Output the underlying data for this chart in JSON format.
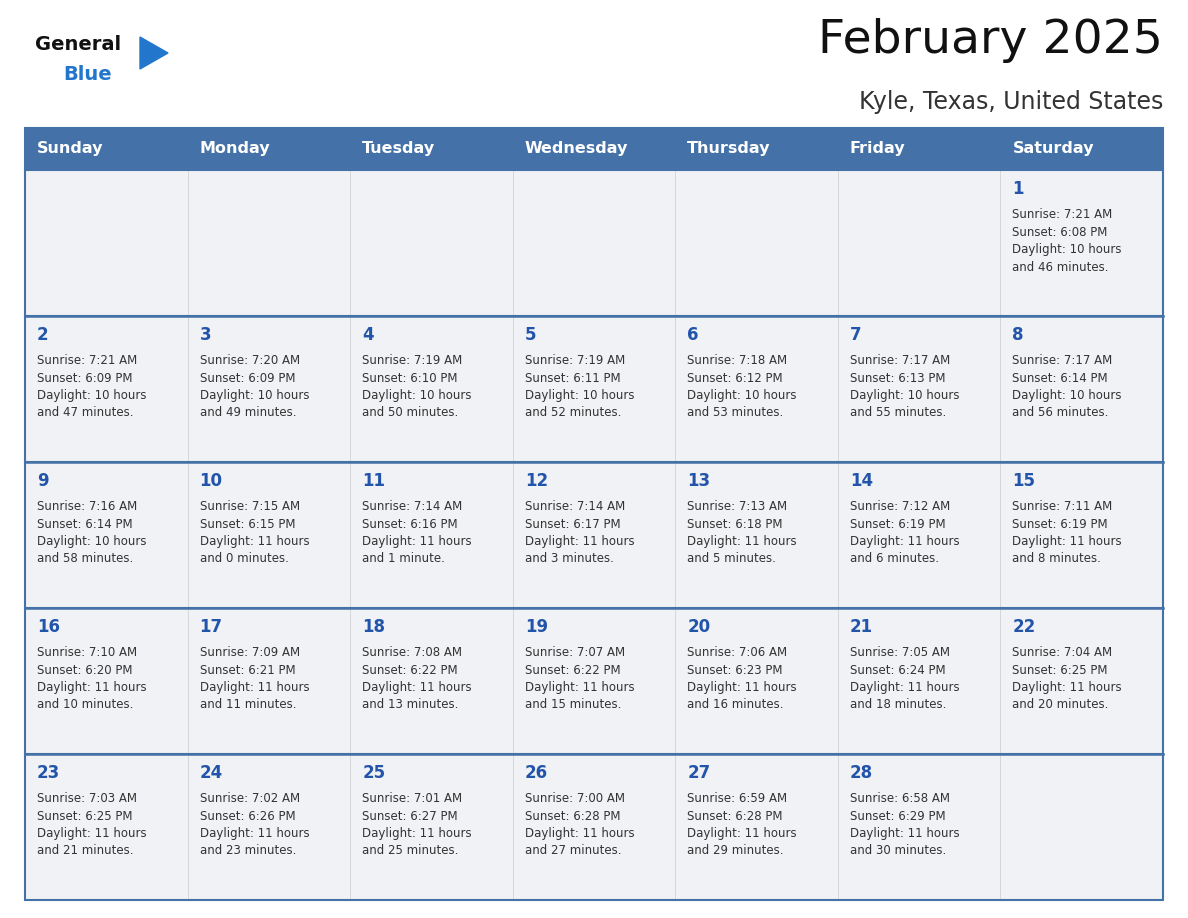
{
  "title": "February 2025",
  "subtitle": "Kyle, Texas, United States",
  "days_of_week": [
    "Sunday",
    "Monday",
    "Tuesday",
    "Wednesday",
    "Thursday",
    "Friday",
    "Saturday"
  ],
  "header_bg": "#4472a8",
  "header_text": "#ffffff",
  "cell_bg_light": "#f0f2f5",
  "cell_bg_white": "#ffffff",
  "border_color": "#4472a8",
  "day_num_color": "#2255aa",
  "cell_text_color": "#333333",
  "title_color": "#111111",
  "subtitle_color": "#333333",
  "logo_general_color": "#111111",
  "logo_blue_color": "#2277cc",
  "calendar": [
    [
      {
        "day": null,
        "sunrise": null,
        "sunset": null,
        "daylight": null
      },
      {
        "day": null,
        "sunrise": null,
        "sunset": null,
        "daylight": null
      },
      {
        "day": null,
        "sunrise": null,
        "sunset": null,
        "daylight": null
      },
      {
        "day": null,
        "sunrise": null,
        "sunset": null,
        "daylight": null
      },
      {
        "day": null,
        "sunrise": null,
        "sunset": null,
        "daylight": null
      },
      {
        "day": null,
        "sunrise": null,
        "sunset": null,
        "daylight": null
      },
      {
        "day": 1,
        "sunrise": "7:21 AM",
        "sunset": "6:08 PM",
        "daylight_line1": "10 hours",
        "daylight_line2": "and 46 minutes."
      }
    ],
    [
      {
        "day": 2,
        "sunrise": "7:21 AM",
        "sunset": "6:09 PM",
        "daylight_line1": "10 hours",
        "daylight_line2": "and 47 minutes."
      },
      {
        "day": 3,
        "sunrise": "7:20 AM",
        "sunset": "6:09 PM",
        "daylight_line1": "10 hours",
        "daylight_line2": "and 49 minutes."
      },
      {
        "day": 4,
        "sunrise": "7:19 AM",
        "sunset": "6:10 PM",
        "daylight_line1": "10 hours",
        "daylight_line2": "and 50 minutes."
      },
      {
        "day": 5,
        "sunrise": "7:19 AM",
        "sunset": "6:11 PM",
        "daylight_line1": "10 hours",
        "daylight_line2": "and 52 minutes."
      },
      {
        "day": 6,
        "sunrise": "7:18 AM",
        "sunset": "6:12 PM",
        "daylight_line1": "10 hours",
        "daylight_line2": "and 53 minutes."
      },
      {
        "day": 7,
        "sunrise": "7:17 AM",
        "sunset": "6:13 PM",
        "daylight_line1": "10 hours",
        "daylight_line2": "and 55 minutes."
      },
      {
        "day": 8,
        "sunrise": "7:17 AM",
        "sunset": "6:14 PM",
        "daylight_line1": "10 hours",
        "daylight_line2": "and 56 minutes."
      }
    ],
    [
      {
        "day": 9,
        "sunrise": "7:16 AM",
        "sunset": "6:14 PM",
        "daylight_line1": "10 hours",
        "daylight_line2": "and 58 minutes."
      },
      {
        "day": 10,
        "sunrise": "7:15 AM",
        "sunset": "6:15 PM",
        "daylight_line1": "11 hours",
        "daylight_line2": "and 0 minutes."
      },
      {
        "day": 11,
        "sunrise": "7:14 AM",
        "sunset": "6:16 PM",
        "daylight_line1": "11 hours",
        "daylight_line2": "and 1 minute."
      },
      {
        "day": 12,
        "sunrise": "7:14 AM",
        "sunset": "6:17 PM",
        "daylight_line1": "11 hours",
        "daylight_line2": "and 3 minutes."
      },
      {
        "day": 13,
        "sunrise": "7:13 AM",
        "sunset": "6:18 PM",
        "daylight_line1": "11 hours",
        "daylight_line2": "and 5 minutes."
      },
      {
        "day": 14,
        "sunrise": "7:12 AM",
        "sunset": "6:19 PM",
        "daylight_line1": "11 hours",
        "daylight_line2": "and 6 minutes."
      },
      {
        "day": 15,
        "sunrise": "7:11 AM",
        "sunset": "6:19 PM",
        "daylight_line1": "11 hours",
        "daylight_line2": "and 8 minutes."
      }
    ],
    [
      {
        "day": 16,
        "sunrise": "7:10 AM",
        "sunset": "6:20 PM",
        "daylight_line1": "11 hours",
        "daylight_line2": "and 10 minutes."
      },
      {
        "day": 17,
        "sunrise": "7:09 AM",
        "sunset": "6:21 PM",
        "daylight_line1": "11 hours",
        "daylight_line2": "and 11 minutes."
      },
      {
        "day": 18,
        "sunrise": "7:08 AM",
        "sunset": "6:22 PM",
        "daylight_line1": "11 hours",
        "daylight_line2": "and 13 minutes."
      },
      {
        "day": 19,
        "sunrise": "7:07 AM",
        "sunset": "6:22 PM",
        "daylight_line1": "11 hours",
        "daylight_line2": "and 15 minutes."
      },
      {
        "day": 20,
        "sunrise": "7:06 AM",
        "sunset": "6:23 PM",
        "daylight_line1": "11 hours",
        "daylight_line2": "and 16 minutes."
      },
      {
        "day": 21,
        "sunrise": "7:05 AM",
        "sunset": "6:24 PM",
        "daylight_line1": "11 hours",
        "daylight_line2": "and 18 minutes."
      },
      {
        "day": 22,
        "sunrise": "7:04 AM",
        "sunset": "6:25 PM",
        "daylight_line1": "11 hours",
        "daylight_line2": "and 20 minutes."
      }
    ],
    [
      {
        "day": 23,
        "sunrise": "7:03 AM",
        "sunset": "6:25 PM",
        "daylight_line1": "11 hours",
        "daylight_line2": "and 21 minutes."
      },
      {
        "day": 24,
        "sunrise": "7:02 AM",
        "sunset": "6:26 PM",
        "daylight_line1": "11 hours",
        "daylight_line2": "and 23 minutes."
      },
      {
        "day": 25,
        "sunrise": "7:01 AM",
        "sunset": "6:27 PM",
        "daylight_line1": "11 hours",
        "daylight_line2": "and 25 minutes."
      },
      {
        "day": 26,
        "sunrise": "7:00 AM",
        "sunset": "6:28 PM",
        "daylight_line1": "11 hours",
        "daylight_line2": "and 27 minutes."
      },
      {
        "day": 27,
        "sunrise": "6:59 AM",
        "sunset": "6:28 PM",
        "daylight_line1": "11 hours",
        "daylight_line2": "and 29 minutes."
      },
      {
        "day": 28,
        "sunrise": "6:58 AM",
        "sunset": "6:29 PM",
        "daylight_line1": "11 hours",
        "daylight_line2": "and 30 minutes."
      },
      {
        "day": null,
        "sunrise": null,
        "sunset": null,
        "daylight_line1": null,
        "daylight_line2": null
      }
    ]
  ]
}
